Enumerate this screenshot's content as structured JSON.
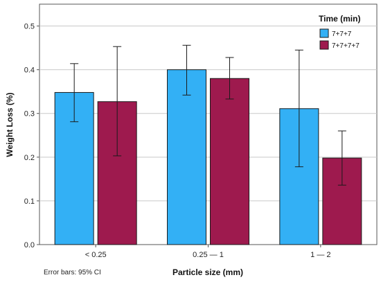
{
  "chart_data": {
    "type": "bar",
    "title": "",
    "xlabel": "Particle size (mm)",
    "ylabel": "Weight Loss (%)",
    "ylim": [
      0,
      0.55
    ],
    "yticks": [
      "0.0",
      "0.1",
      "0.2",
      "0.3",
      "0.4",
      "0.5"
    ],
    "grid": "horizontal",
    "legend": {
      "title": "Time (min)",
      "placement": "top-right"
    },
    "categories": [
      "< 0.25",
      "0.25 — 1",
      "1 — 2"
    ],
    "series": [
      {
        "name": "7+7+7",
        "color": "#33b0f5",
        "values": [
          0.348,
          0.4,
          0.311
        ],
        "ci_low": [
          0.281,
          0.342,
          0.178
        ],
        "ci_high": [
          0.414,
          0.456,
          0.445
        ]
      },
      {
        "name": "7+7+7+7",
        "color": "#9e1a4e",
        "values": [
          0.327,
          0.38,
          0.198
        ],
        "ci_low": [
          0.203,
          0.333,
          0.136
        ],
        "ci_high": [
          0.453,
          0.428,
          0.26
        ]
      }
    ],
    "footnote": "Error bars: 95% CI"
  }
}
